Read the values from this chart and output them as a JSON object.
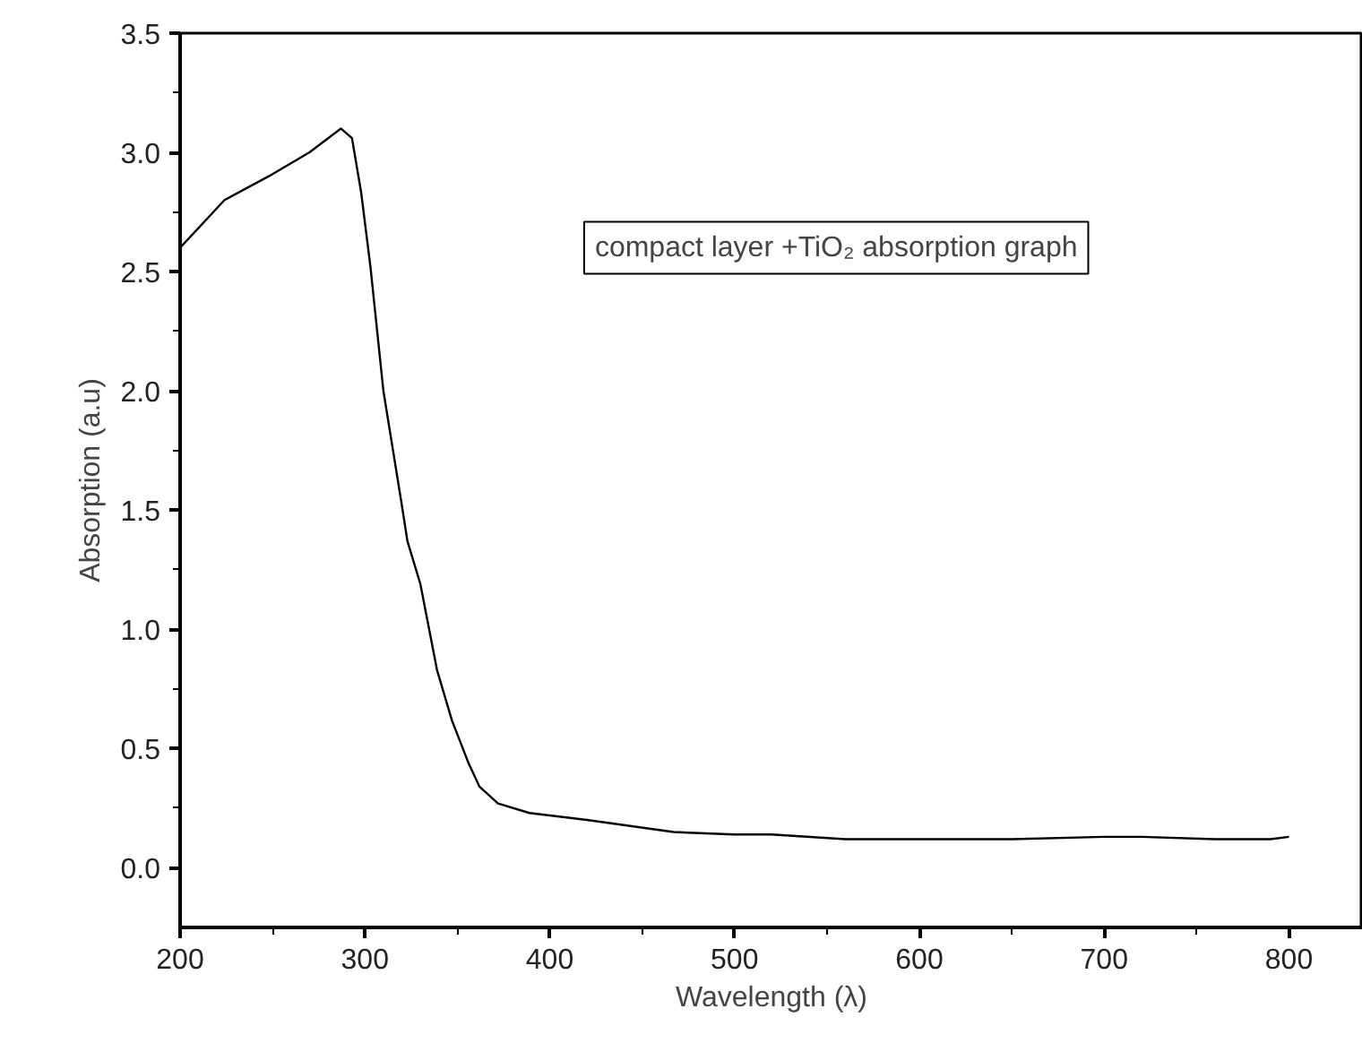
{
  "chart_data": {
    "type": "line",
    "xlabel": "Wavelength (λ)",
    "ylabel": "Absorption (a.u)",
    "annotations": [
      "compact layer +TiO₂ absorption graph"
    ],
    "series": [
      {
        "color": "#000000",
        "x": [
          200,
          224,
          248,
          270,
          287,
          293,
          298,
          303,
          310,
          320,
          323,
          330,
          339,
          347,
          356,
          362,
          372,
          389,
          421,
          467,
          500,
          520,
          560,
          600,
          650,
          700,
          720,
          760,
          790,
          800
        ],
        "values": [
          2.6,
          2.8,
          2.9,
          3.0,
          3.1,
          3.06,
          2.83,
          2.52,
          2.0,
          1.52,
          1.37,
          1.19,
          0.83,
          0.62,
          0.44,
          0.34,
          0.27,
          0.23,
          0.2,
          0.15,
          0.14,
          0.14,
          0.12,
          0.12,
          0.12,
          0.13,
          0.13,
          0.12,
          0.12,
          0.13
        ]
      }
    ],
    "xlim": [
      200,
      840
    ],
    "ylim": [
      -0.25,
      3.5
    ],
    "xticks": [
      200,
      300,
      400,
      500,
      600,
      700,
      800
    ],
    "yticks": [
      {
        "value": 0,
        "label": "0.0"
      },
      0.5,
      {
        "value": 1,
        "label": "1.0"
      },
      1.5,
      {
        "value": 2,
        "label": "2.0"
      },
      2.5,
      {
        "value": 3,
        "label": "3.0"
      },
      3.5
    ],
    "grid": false,
    "marker": "none",
    "line_style": "solid"
  }
}
